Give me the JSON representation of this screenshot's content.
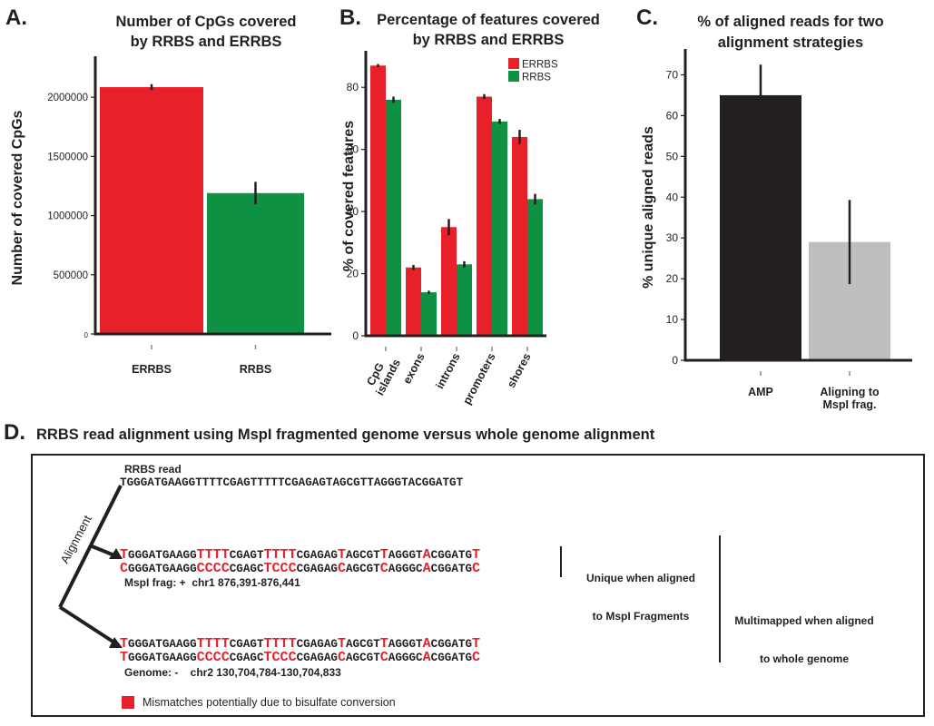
{
  "chart_data": [
    {
      "type": "bar",
      "panel": "A.",
      "title": [
        "Number of CpGs covered",
        "by RRBS and ERRBS"
      ],
      "xlabel": "",
      "ylabel": "Number of covered CpGs",
      "ylim": [
        0,
        2300000
      ],
      "yticks": [
        0,
        500000,
        1000000,
        1500000,
        2000000
      ],
      "categories": [
        "ERRBS",
        "RRBS"
      ],
      "values": [
        2085000,
        1190000
      ],
      "errors": [
        25000,
        95000
      ],
      "colors": [
        "#e8202a",
        "#0f9143"
      ]
    },
    {
      "type": "bar",
      "panel": "B.",
      "title": [
        "Percentage of features covered",
        "by RRBS and ERRBS"
      ],
      "xlabel": "",
      "ylabel": "% of covered features",
      "ylim": [
        0,
        90
      ],
      "yticks": [
        0,
        20,
        40,
        60,
        80
      ],
      "categories": [
        "CpG islands",
        "exons",
        "introns",
        "promoters",
        "shores"
      ],
      "series": [
        {
          "name": "ERRBS",
          "color": "#e8202a",
          "values": [
            87,
            22,
            35,
            77,
            64
          ],
          "errors": [
            0.5,
            0.8,
            2.6,
            0.8,
            2.3
          ]
        },
        {
          "name": "RRBS",
          "color": "#0f9143",
          "values": [
            76,
            14,
            23,
            69,
            44
          ],
          "errors": [
            1.0,
            0.5,
            1.0,
            0.8,
            1.7
          ]
        }
      ],
      "legend": "top-right"
    },
    {
      "type": "bar",
      "panel": "C.",
      "title": [
        "% of aligned reads for two",
        "alignment strategies"
      ],
      "xlabel": "",
      "ylabel": "% unique aligned reads",
      "ylim": [
        0,
        75
      ],
      "yticks": [
        0,
        10,
        20,
        30,
        40,
        50,
        60,
        70
      ],
      "categories": [
        "AMP",
        "Aligning to MspI frag."
      ],
      "values": [
        65,
        29
      ],
      "errors": [
        7.5,
        10.3
      ],
      "colors": [
        "#231f20",
        "#bcbec0"
      ]
    }
  ],
  "panelD": {
    "letter": "D.",
    "title": "RRBS read alignment using MspI fragmented genome versus whole genome alignment",
    "read_label": "RRBS read",
    "read_seq": "TGGGATGAAGGTTTTCGAGTTTTTCGAGAGTAGCGTTAGGGTACGGATGT",
    "alignment_label": "Alignment",
    "ref_a": "TGGGATGAAGGTTTTCGAGTTTTTCGAGAGTAGCGTTAGGGTACGGATGT",
    "frag_seq": "CGGGATGAAGGCCCCCGAGCTCCCCGAGAGCAGCGTCAGGGCACGGATGC",
    "frag_label": "MspI frag: +  chr1 876,391-876,441",
    "ref_b": "TGGGATGAAGGTTTTCGAGTTTTTCGAGAGTAGCGTTAGGGTACGGATGT",
    "genome_seq": "TGGGATGAAGGCCCCCGAGCTCCCCGAGAGCAGCGTCAGGGCACGGATGC",
    "genome_label": "Genome: -    chr2 130,704,784-130,704,833",
    "mismatch_positions": [
      0,
      11,
      12,
      13,
      14,
      20,
      21,
      22,
      23,
      30,
      36,
      42,
      49
    ],
    "unique_note": [
      "Unique when aligned",
      "to MspI Fragments"
    ],
    "multi_note": [
      "Multimapped when aligned",
      "to whole genome"
    ],
    "legend_label": "Mismatches potentially due to bisulfate conversion",
    "mismatch_color": "#e8202a"
  }
}
